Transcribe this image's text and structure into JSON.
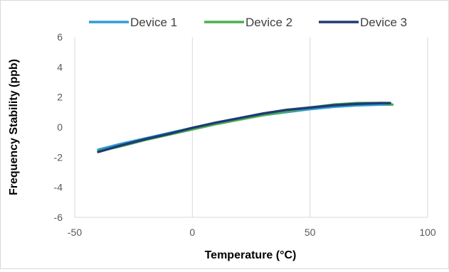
{
  "chart_data": {
    "type": "line",
    "title": "",
    "xlabel": "Temperature (°C)",
    "ylabel": "Frequency Stability (ppb)",
    "xlim": [
      -50,
      100
    ],
    "ylim": [
      -6,
      6
    ],
    "x_ticks": [
      "-50",
      "0",
      "50",
      "100"
    ],
    "y_ticks": [
      "-6",
      "-4",
      "-2",
      "0",
      "2",
      "4",
      "6"
    ],
    "grid": "vertical",
    "legend": "top",
    "series": [
      {
        "name": "Device 1",
        "color": "#2e9bd6",
        "x": [
          -40,
          -30,
          -20,
          -10,
          0,
          10,
          20,
          30,
          40,
          50,
          60,
          70,
          80,
          85
        ],
        "y": [
          -1.5,
          -1.1,
          -0.75,
          -0.4,
          -0.05,
          0.25,
          0.55,
          0.8,
          1.0,
          1.2,
          1.35,
          1.45,
          1.5,
          1.5
        ]
      },
      {
        "name": "Device 2",
        "color": "#4caf50",
        "x": [
          -40,
          -30,
          -20,
          -10,
          0,
          10,
          20,
          30,
          40,
          50,
          60,
          70,
          80,
          85
        ],
        "y": [
          -1.6,
          -1.25,
          -0.85,
          -0.5,
          -0.15,
          0.2,
          0.5,
          0.8,
          1.05,
          1.3,
          1.5,
          1.6,
          1.6,
          1.5
        ]
      },
      {
        "name": "Device 3",
        "color": "#1f3b73",
        "x": [
          -40,
          -30,
          -20,
          -10,
          0,
          10,
          20,
          30,
          40,
          50,
          60,
          70,
          80,
          84
        ],
        "y": [
          -1.65,
          -1.2,
          -0.8,
          -0.45,
          -0.05,
          0.3,
          0.6,
          0.9,
          1.15,
          1.3,
          1.45,
          1.55,
          1.6,
          1.6
        ]
      }
    ]
  }
}
